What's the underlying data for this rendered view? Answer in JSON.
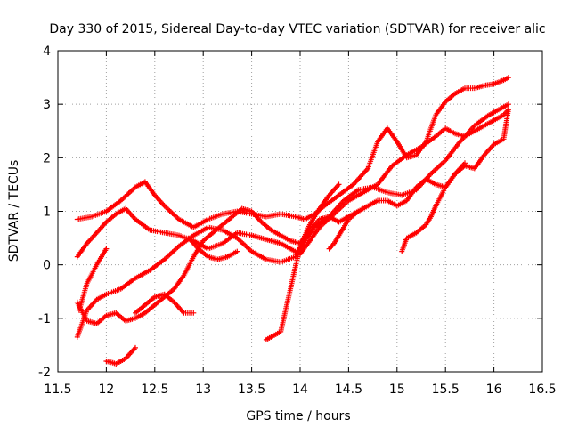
{
  "chart_data": {
    "type": "scatter",
    "title": "Day 330 of 2015, Sidereal Day-to-day VTEC variation (SDTVAR) for receiver alic",
    "xlabel": "GPS time / hours",
    "ylabel": "SDTVAR / TECUs",
    "xlim": [
      11.5,
      16.5
    ],
    "ylim": [
      -2,
      4
    ],
    "xticks": [
      "11.5",
      "12",
      "12.5",
      "13",
      "13.5",
      "14",
      "14.5",
      "15",
      "15.5",
      "16",
      "16.5"
    ],
    "xtick_values": [
      11.5,
      12,
      12.5,
      13,
      13.5,
      14,
      14.5,
      15,
      15.5,
      16,
      16.5
    ],
    "yticks": [
      "-2",
      "-1",
      "0",
      "1",
      "2",
      "3",
      "4"
    ],
    "ytick_values": [
      -2,
      -1,
      0,
      1,
      2,
      3,
      4
    ],
    "grid": true,
    "marker": "+",
    "color": "#ff0000",
    "series": [
      {
        "name": "track-1",
        "x": [
          11.7,
          11.85,
          12.0,
          12.15,
          12.3,
          12.4,
          12.5,
          12.6,
          12.75,
          12.9,
          13.05,
          13.2,
          13.35,
          13.5,
          13.65,
          13.8,
          13.95,
          14.05,
          14.15,
          14.25,
          14.4,
          14.55,
          14.7,
          14.8,
          14.9,
          15.0,
          15.1,
          15.2,
          15.3,
          15.4,
          15.5,
          15.6,
          15.7,
          15.8,
          15.9,
          16.0,
          16.1,
          16.15
        ],
        "y": [
          0.85,
          0.9,
          1.0,
          1.2,
          1.45,
          1.55,
          1.3,
          1.1,
          0.85,
          0.7,
          0.85,
          0.95,
          1.0,
          0.95,
          0.9,
          0.95,
          0.9,
          0.85,
          0.95,
          1.1,
          1.3,
          1.5,
          1.8,
          2.3,
          2.55,
          2.3,
          2.0,
          2.05,
          2.3,
          2.8,
          3.05,
          3.2,
          3.3,
          3.3,
          3.35,
          3.38,
          3.45,
          3.5
        ]
      },
      {
        "name": "track-2",
        "x": [
          11.7,
          11.8,
          11.9,
          12.0,
          12.1,
          12.2,
          12.3,
          12.45,
          12.6,
          12.75,
          12.9,
          13.05,
          13.2,
          13.35,
          13.5,
          13.6,
          13.7,
          13.8,
          13.9,
          14.0,
          14.1,
          14.2,
          14.35,
          14.5,
          14.65,
          14.8,
          14.95,
          15.1,
          15.25,
          15.4,
          15.5,
          15.6,
          15.7,
          15.8,
          15.9,
          16.0,
          16.1,
          16.15
        ],
        "y": [
          0.15,
          0.4,
          0.6,
          0.8,
          0.95,
          1.05,
          0.85,
          0.65,
          0.6,
          0.55,
          0.45,
          0.3,
          0.4,
          0.6,
          0.55,
          0.5,
          0.45,
          0.4,
          0.3,
          0.2,
          0.45,
          0.7,
          0.95,
          1.2,
          1.35,
          1.5,
          1.85,
          2.05,
          2.2,
          2.4,
          2.55,
          2.45,
          2.4,
          2.5,
          2.6,
          2.7,
          2.8,
          2.9
        ]
      },
      {
        "name": "track-3",
        "x": [
          11.7,
          11.8,
          11.9,
          12.0,
          12.1,
          12.2,
          12.3,
          12.4,
          12.5,
          12.6,
          12.7,
          12.8,
          12.9,
          13.0,
          13.1,
          13.2,
          13.3,
          13.4,
          13.5,
          13.6,
          13.7,
          13.8,
          13.9,
          14.0,
          14.1,
          14.2,
          14.3,
          14.4,
          14.5,
          14.6,
          14.7,
          14.8,
          14.9,
          15.0,
          15.1,
          15.2,
          15.3,
          15.4,
          15.5,
          15.6,
          15.7,
          15.8,
          15.9,
          16.0,
          16.1,
          16.15
        ],
        "y": [
          -0.7,
          -1.05,
          -1.1,
          -0.95,
          -0.9,
          -1.05,
          -1.0,
          -0.9,
          -0.75,
          -0.6,
          -0.45,
          -0.2,
          0.15,
          0.45,
          0.6,
          0.75,
          0.9,
          1.05,
          1.0,
          0.8,
          0.65,
          0.55,
          0.45,
          0.4,
          0.65,
          0.85,
          0.9,
          0.8,
          0.9,
          1.0,
          1.1,
          1.2,
          1.2,
          1.1,
          1.2,
          1.45,
          1.6,
          1.5,
          1.45,
          1.7,
          1.85,
          1.8,
          2.05,
          2.25,
          2.35,
          2.9
        ]
      },
      {
        "name": "track-4",
        "x": [
          11.7,
          11.8,
          11.9,
          12.0,
          12.15,
          12.3,
          12.45,
          12.6,
          12.75,
          12.9,
          13.05,
          13.2,
          13.35,
          13.5,
          13.65,
          13.8,
          13.95,
          14.05,
          14.15,
          14.3,
          14.45,
          14.6,
          14.75,
          14.9,
          15.05,
          15.2,
          15.35,
          15.5,
          15.65,
          15.8,
          15.95,
          16.05,
          16.15
        ],
        "y": [
          -1.35,
          -0.85,
          -0.65,
          -0.55,
          -0.45,
          -0.25,
          -0.1,
          0.1,
          0.35,
          0.55,
          0.7,
          0.65,
          0.5,
          0.25,
          0.1,
          0.05,
          0.15,
          0.45,
          0.7,
          0.9,
          1.2,
          1.4,
          1.45,
          1.35,
          1.3,
          1.4,
          1.7,
          1.95,
          2.3,
          2.6,
          2.8,
          2.9,
          3.0
        ]
      },
      {
        "name": "track-5",
        "x": [
          11.72,
          11.8,
          11.9,
          12.0
        ],
        "y": [
          -0.85,
          -0.35,
          0.0,
          0.3
        ]
      },
      {
        "name": "track-6",
        "x": [
          12.3,
          12.4,
          12.5,
          12.6,
          12.7,
          12.8,
          12.9
        ],
        "y": [
          -0.9,
          -0.75,
          -0.6,
          -0.55,
          -0.7,
          -0.9,
          -0.9
        ]
      },
      {
        "name": "track-7",
        "x": [
          12.0,
          12.05,
          12.1,
          12.2,
          12.3
        ],
        "y": [
          -1.8,
          -1.82,
          -1.85,
          -1.75,
          -1.55
        ]
      },
      {
        "name": "track-8",
        "x": [
          12.85,
          12.95,
          13.05,
          13.15,
          13.25,
          13.35
        ],
        "y": [
          0.5,
          0.3,
          0.15,
          0.1,
          0.15,
          0.25
        ]
      },
      {
        "name": "track-9",
        "x": [
          13.65,
          13.7,
          13.75,
          13.8,
          13.85,
          13.9,
          13.95,
          14.0,
          14.1,
          14.2,
          14.3,
          14.4
        ],
        "y": [
          -1.4,
          -1.35,
          -1.3,
          -1.25,
          -0.85,
          -0.45,
          -0.05,
          0.35,
          0.75,
          1.05,
          1.3,
          1.5
        ]
      },
      {
        "name": "track-10",
        "x": [
          14.3,
          14.35,
          14.4,
          14.5,
          14.6
        ],
        "y": [
          0.3,
          0.4,
          0.55,
          0.85,
          1.0
        ]
      },
      {
        "name": "track-11",
        "x": [
          15.05,
          15.1,
          15.2,
          15.3,
          15.35,
          15.4,
          15.5,
          15.6,
          15.7
        ],
        "y": [
          0.25,
          0.5,
          0.6,
          0.75,
          0.9,
          1.1,
          1.45,
          1.7,
          1.9
        ]
      }
    ]
  }
}
